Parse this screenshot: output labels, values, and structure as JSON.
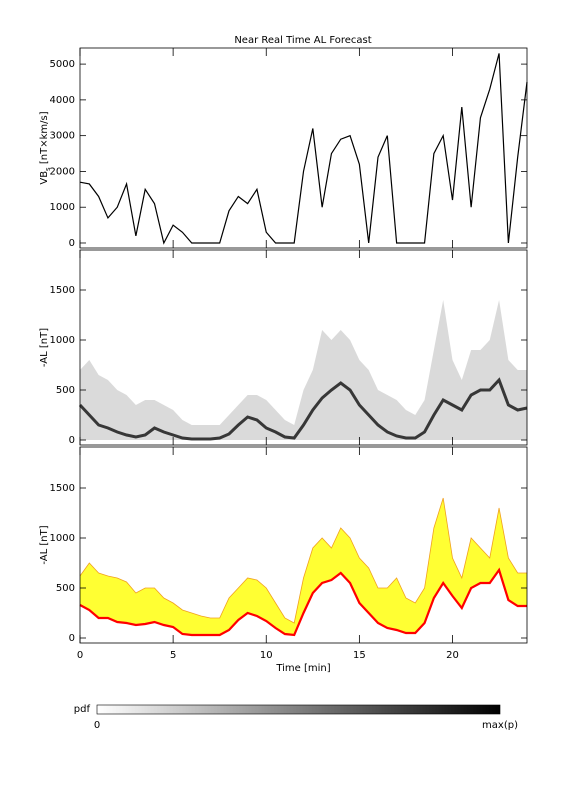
{
  "chart_data": [
    {
      "type": "line",
      "title": "Near Real Time AL Forecast",
      "ylabel": [
        "VB",
        "s",
        " [nT×km/s]"
      ],
      "x": [
        0,
        0.5,
        1,
        1.5,
        2,
        2.5,
        3,
        3.5,
        4,
        4.5,
        5,
        5.5,
        6,
        6.5,
        7,
        7.5,
        8,
        8.5,
        9,
        9.5,
        10,
        10.5,
        11,
        11.5,
        12,
        12.5,
        13,
        13.5,
        14,
        14.5,
        15,
        15.5,
        16,
        16.5,
        17,
        17.5,
        18,
        18.5,
        19,
        19.5,
        20,
        20.5,
        21,
        21.5,
        22,
        22.5,
        23,
        23.5,
        24
      ],
      "series": [
        {
          "color": "#000000",
          "values": [
            1700,
            1650,
            1300,
            700,
            1000,
            1650,
            200,
            1500,
            1100,
            0,
            500,
            300,
            0,
            0,
            0,
            0,
            900,
            1300,
            1100,
            1500,
            300,
            0,
            0,
            0,
            2000,
            3200,
            1000,
            2500,
            2900,
            3000,
            2200,
            0,
            2400,
            3000,
            0,
            0,
            0,
            0,
            2500,
            3000,
            1200,
            3800,
            1000,
            3500,
            4300,
            5300,
            0,
            2400,
            4500
          ]
        }
      ],
      "xlim": [
        0,
        24
      ],
      "xticks": [
        0,
        5,
        10,
        15,
        20
      ],
      "ylim": [
        -140,
        5450
      ],
      "yticks": [
        0,
        1000,
        2000,
        3000,
        4000,
        5000
      ]
    },
    {
      "type": "density",
      "ylabel": "-AL [nT]",
      "x": [
        0,
        0.5,
        1,
        1.5,
        2,
        2.5,
        3,
        3.5,
        4,
        4.5,
        5,
        5.5,
        6,
        6.5,
        7,
        7.5,
        8,
        8.5,
        9,
        9.5,
        10,
        10.5,
        11,
        11.5,
        12,
        12.5,
        13,
        13.5,
        14,
        14.5,
        15,
        15.5,
        16,
        16.5,
        17,
        17.5,
        18,
        18.5,
        19,
        19.5,
        20,
        20.5,
        21,
        21.5,
        22,
        22.5,
        23,
        23.5,
        24
      ],
      "series": [
        {
          "color": "#bbbbbb",
          "values": [
            700,
            800,
            650,
            600,
            500,
            450,
            350,
            400,
            400,
            350,
            300,
            200,
            150,
            150,
            150,
            150,
            250,
            350,
            450,
            450,
            400,
            300,
            200,
            150,
            500,
            700,
            1100,
            1000,
            1100,
            1000,
            800,
            700,
            500,
            450,
            400,
            300,
            250,
            400,
            900,
            1400,
            800,
            600,
            900,
            900,
            1000,
            1400,
            800,
            700,
            700
          ]
        },
        {
          "color": "#000000",
          "values": [
            350,
            250,
            150,
            120,
            80,
            50,
            30,
            50,
            120,
            80,
            50,
            20,
            10,
            10,
            10,
            20,
            60,
            150,
            230,
            200,
            120,
            80,
            30,
            20,
            150,
            300,
            420,
            500,
            570,
            500,
            350,
            250,
            150,
            80,
            40,
            20,
            20,
            80,
            250,
            400,
            350,
            300,
            450,
            500,
            500,
            600,
            350,
            300,
            320
          ]
        }
      ],
      "xlim": [
        0,
        24
      ],
      "xticks": [
        0,
        5,
        10,
        15,
        20
      ],
      "ylim": [
        -50,
        1900
      ],
      "yticks": [
        0,
        500,
        1000,
        1500
      ]
    },
    {
      "type": "band",
      "ylabel": "-AL [nT]",
      "xlabel": "Time [min]",
      "x": [
        0,
        0.5,
        1,
        1.5,
        2,
        2.5,
        3,
        3.5,
        4,
        4.5,
        5,
        5.5,
        6,
        6.5,
        7,
        7.5,
        8,
        8.5,
        9,
        9.5,
        10,
        10.5,
        11,
        11.5,
        12,
        12.5,
        13,
        13.5,
        14,
        14.5,
        15,
        15.5,
        16,
        16.5,
        17,
        17.5,
        18,
        18.5,
        19,
        19.5,
        20,
        20.5,
        21,
        21.5,
        22,
        22.5,
        23,
        23.5,
        24
      ],
      "series": [
        {
          "color": "#ffff33",
          "values": [
            620,
            750,
            650,
            620,
            600,
            560,
            450,
            500,
            500,
            400,
            350,
            280,
            250,
            220,
            200,
            200,
            400,
            500,
            600,
            580,
            500,
            350,
            200,
            150,
            600,
            900,
            1000,
            900,
            1100,
            1000,
            800,
            700,
            500,
            500,
            600,
            400,
            350,
            500,
            1100,
            1400,
            800,
            600,
            1000,
            900,
            800,
            1300,
            800,
            650,
            650
          ]
        },
        {
          "color": "#ff0000",
          "values": [
            330,
            280,
            200,
            200,
            160,
            150,
            130,
            140,
            160,
            130,
            110,
            40,
            30,
            30,
            30,
            30,
            80,
            180,
            250,
            220,
            170,
            100,
            40,
            30,
            250,
            450,
            550,
            580,
            650,
            550,
            350,
            250,
            150,
            100,
            80,
            50,
            50,
            150,
            400,
            550,
            420,
            300,
            500,
            550,
            550,
            680,
            380,
            320,
            320
          ]
        }
      ],
      "xlim": [
        0,
        24
      ],
      "xticks": [
        0,
        5,
        10,
        15,
        20
      ],
      "ylim": [
        -50,
        1910
      ],
      "yticks": [
        0,
        500,
        1000,
        1500
      ]
    }
  ],
  "colorbar": {
    "label": "pdf",
    "min_label": "0",
    "max_label": "max(p)"
  }
}
